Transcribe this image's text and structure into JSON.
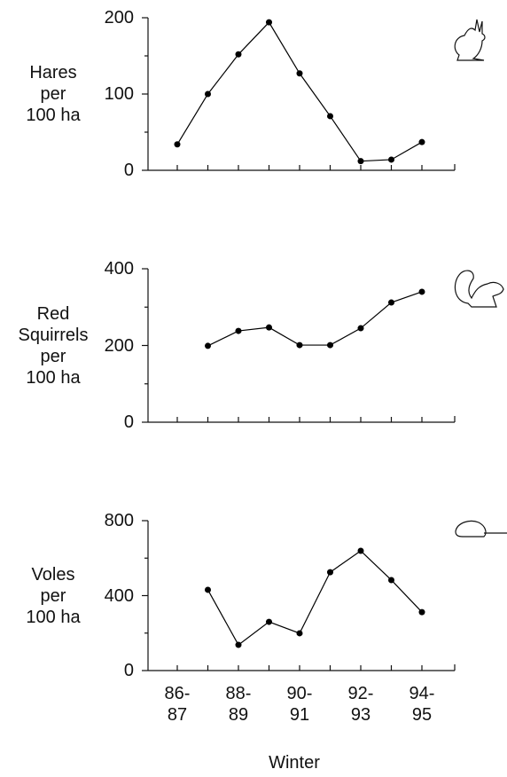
{
  "chart_data": [
    {
      "type": "line",
      "ylabel": "Hares\nper\n100 ha",
      "categories": [
        null,
        null,
        null,
        null,
        null,
        null,
        null,
        null,
        null
      ],
      "values": [
        34,
        100,
        152,
        194,
        127,
        71,
        12,
        14,
        37
      ],
      "color": "#000000",
      "ylim": [
        0,
        200
      ],
      "yticks": [
        0,
        100,
        200
      ]
    },
    {
      "type": "line",
      "ylabel": "Red\nSquirrels\nper\n100 ha",
      "categories": [
        null,
        null,
        null,
        null,
        null,
        null,
        null,
        null,
        null
      ],
      "values": [
        null,
        199,
        238,
        247,
        201,
        201,
        245,
        312,
        340
      ],
      "color": "#000000",
      "ylim": [
        0,
        400
      ],
      "yticks": [
        0,
        200,
        400
      ]
    },
    {
      "type": "line",
      "ylabel": "Voles\nper\n100 ha",
      "xlabel": "Winter",
      "categories": [
        "86-\n87",
        null,
        "88-\n89",
        null,
        "90-\n91",
        null,
        "92-\n93",
        null,
        "94-\n95"
      ],
      "values": [
        null,
        431,
        137,
        260,
        199,
        525,
        639,
        483,
        312
      ],
      "color": "#000000",
      "ylim": [
        0,
        800
      ],
      "yticks": [
        0,
        400,
        800
      ]
    }
  ]
}
